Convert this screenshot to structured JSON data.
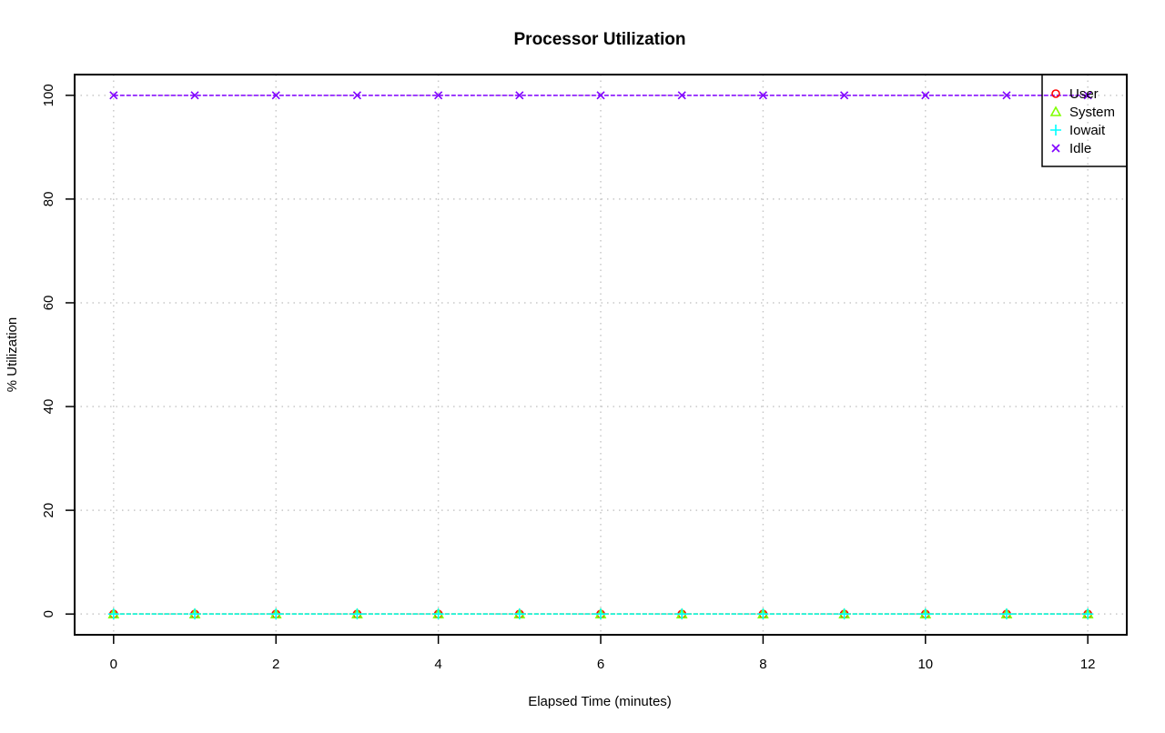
{
  "chart_data": {
    "type": "line",
    "title": "Processor Utilization",
    "xlabel": "Elapsed Time (minutes)",
    "ylabel": "% Utilization",
    "xlim": [
      -0.48,
      12.48
    ],
    "ylim": [
      -4,
      104
    ],
    "xticks": [
      0,
      2,
      4,
      6,
      8,
      10,
      12
    ],
    "yticks": [
      0,
      20,
      40,
      60,
      80,
      100
    ],
    "grid": true,
    "legend_position": "top-right",
    "x": [
      0,
      1,
      2,
      3,
      4,
      5,
      6,
      7,
      8,
      9,
      10,
      11,
      12
    ],
    "series": [
      {
        "name": "User",
        "color": "#ff0000",
        "marker": "circle",
        "values": [
          0,
          0,
          0,
          0,
          0,
          0,
          0,
          0,
          0,
          0,
          0,
          0,
          0
        ]
      },
      {
        "name": "System",
        "color": "#80ff00",
        "marker": "triangle",
        "values": [
          0,
          0,
          0,
          0,
          0,
          0,
          0,
          0,
          0,
          0,
          0,
          0,
          0
        ]
      },
      {
        "name": "Iowait",
        "color": "#00ffff",
        "marker": "plus",
        "values": [
          0,
          0,
          0,
          0,
          0,
          0,
          0,
          0,
          0,
          0,
          0,
          0,
          0
        ]
      },
      {
        "name": "Idle",
        "color": "#8000ff",
        "marker": "cross",
        "values": [
          100,
          100,
          100,
          100,
          100,
          100,
          100,
          100,
          100,
          100,
          100,
          100,
          100
        ]
      }
    ]
  }
}
